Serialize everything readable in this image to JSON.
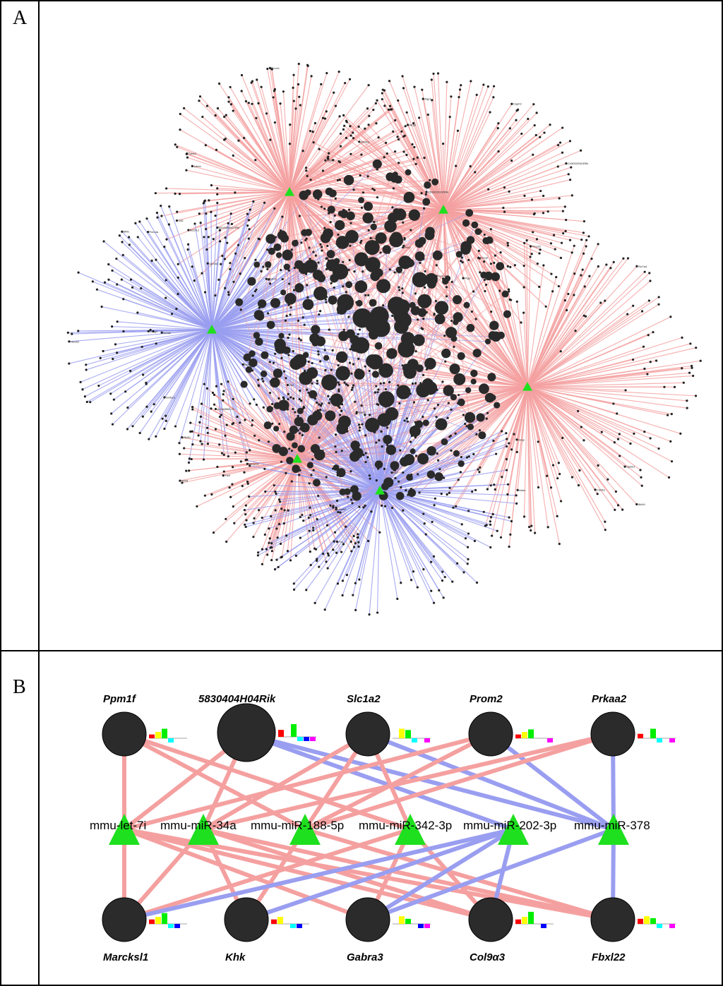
{
  "panels": {
    "a": {
      "letter": "A"
    },
    "b": {
      "letter": "B"
    }
  },
  "colors": {
    "up_edge": "#f5a0a0",
    "down_edge": "#9a9ef0",
    "node": "#2b2b2b",
    "mirna": "#1ee01e",
    "frame": "#000000"
  },
  "network_a": {
    "hubs": [
      {
        "id": "h1",
        "type": "up"
      },
      {
        "id": "h2",
        "type": "up"
      },
      {
        "id": "h3",
        "type": "down"
      },
      {
        "id": "h4",
        "type": "up"
      },
      {
        "id": "h5",
        "type": "up"
      },
      {
        "id": "h6",
        "type": "down"
      }
    ],
    "labels": [
      "1500015O02Rik",
      "4933404M17Rik",
      "Gli2",
      "Cdkn2",
      "Tubb2",
      "Sfxn4",
      "Bcl2l12",
      "Gdf15",
      "Runx1",
      "Adrb1",
      "Nlrp6",
      "Pigu",
      "Aqp1",
      "Zfp422",
      "Capn9",
      "Pdk1",
      "Nrp5",
      "Arl6",
      "C430002N24Rik",
      "Pex2",
      "Sorbs3",
      "Ptchd2",
      "Gpr161",
      "Nr4a2",
      "Sox7",
      "Wnt3",
      "Fmo4a",
      "Mill1",
      "Creg1",
      "Hecw2",
      "Spink1",
      "Adss",
      "Aldh1",
      "Grap",
      "Irs2",
      "Gm1006",
      "Slc7a4",
      "Kcnq3",
      "Cd24a",
      "Pmp22",
      "Ttc9",
      "Bcl6b",
      "Hmgcs2",
      "Lmnb2",
      "Zfp61",
      "AC168852.22",
      "Wnt4",
      "Mt2",
      "Fos",
      "Dusp1"
    ]
  },
  "genes": [
    {
      "id": "ppm1f",
      "name": "Ppm1f",
      "size": "s",
      "bars": [
        0.3,
        0.5,
        0.75,
        0.35,
        0,
        0
      ]
    },
    {
      "id": "rik",
      "name": "5830404H04Rik",
      "size": "l",
      "bars": [
        0.55,
        0,
        1.0,
        0.6,
        0.45,
        0.45
      ]
    },
    {
      "id": "slc1a2",
      "name": "Slc1a2",
      "size": "s",
      "bars": [
        0,
        0.75,
        0.65,
        0.4,
        0,
        0.35
      ]
    },
    {
      "id": "prom2",
      "name": "Prom2",
      "size": "s",
      "bars": [
        0.3,
        0.5,
        0.7,
        0,
        0,
        0.35
      ]
    },
    {
      "id": "prkaa2",
      "name": "Prkaa2",
      "size": "s",
      "bars": [
        0.35,
        0,
        0.75,
        0.4,
        0,
        0.35
      ]
    },
    {
      "id": "marcksl1",
      "name": "Marcksl1",
      "size": "s",
      "bars": [
        0.35,
        0.55,
        0.85,
        0.3,
        0.3,
        0
      ]
    },
    {
      "id": "khk",
      "name": "Khk",
      "size": "s",
      "bars": [
        0.35,
        0.55,
        0,
        0.4,
        0.4,
        0
      ]
    },
    {
      "id": "gabra3",
      "name": "Gabra3",
      "size": "s",
      "bars": [
        0,
        0.6,
        0.4,
        0,
        0.4,
        0.35
      ]
    },
    {
      "id": "col9a3",
      "name": "Col9α3",
      "size": "s",
      "bars": [
        0.35,
        0.55,
        0.95,
        0,
        0.35,
        0
      ]
    },
    {
      "id": "fbxl22",
      "name": "Fbxl22",
      "size": "s",
      "bars": [
        0.4,
        0.6,
        0.45,
        0.45,
        0,
        0.4
      ]
    }
  ],
  "mirnas": [
    {
      "id": "let7i",
      "name": "mmu-let-7i"
    },
    {
      "id": "mir34a",
      "name": "mmu-miR-34a"
    },
    {
      "id": "mir188",
      "name": "mmu-miR-188-5p"
    },
    {
      "id": "mir342",
      "name": "mmu-miR-342-3p"
    },
    {
      "id": "mir202",
      "name": "mmu-miR-202-3p"
    },
    {
      "id": "mir378",
      "name": "mmu-miR-378"
    }
  ],
  "bar_colors": [
    "#ff0000",
    "#ffff00",
    "#00ee00",
    "#00ffff",
    "#0000ff",
    "#ff00ff"
  ],
  "edges_b": [
    {
      "from": "ppm1f",
      "to": "let7i",
      "type": "up"
    },
    {
      "from": "ppm1f",
      "to": "mir188",
      "type": "up"
    },
    {
      "from": "ppm1f",
      "to": "mir342",
      "type": "up"
    },
    {
      "from": "rik",
      "to": "let7i",
      "type": "up"
    },
    {
      "from": "rik",
      "to": "mir34a",
      "type": "up"
    },
    {
      "from": "rik",
      "to": "mir202",
      "type": "down"
    },
    {
      "from": "rik",
      "to": "mir378",
      "type": "down"
    },
    {
      "from": "slc1a2",
      "to": "mir34a",
      "type": "up"
    },
    {
      "from": "slc1a2",
      "to": "mir342",
      "type": "up"
    },
    {
      "from": "slc1a2",
      "to": "mir378",
      "type": "down"
    },
    {
      "from": "slc1a2",
      "to": "mir188",
      "type": "up"
    },
    {
      "from": "prom2",
      "to": "let7i",
      "type": "up"
    },
    {
      "from": "prom2",
      "to": "mir188",
      "type": "up"
    },
    {
      "from": "prom2",
      "to": "mir378",
      "type": "down"
    },
    {
      "from": "prkaa2",
      "to": "mir34a",
      "type": "up"
    },
    {
      "from": "prkaa2",
      "to": "mir188",
      "type": "up"
    },
    {
      "from": "prkaa2",
      "to": "mir378",
      "type": "down"
    },
    {
      "from": "let7i",
      "to": "marcksl1",
      "type": "up"
    },
    {
      "from": "let7i",
      "to": "gabra3",
      "type": "up"
    },
    {
      "from": "let7i",
      "to": "col9a3",
      "type": "up"
    },
    {
      "from": "let7i",
      "to": "fbxl22",
      "type": "up"
    },
    {
      "from": "mir34a",
      "to": "marcksl1",
      "type": "up"
    },
    {
      "from": "mir34a",
      "to": "khk",
      "type": "up"
    },
    {
      "from": "mir34a",
      "to": "col9a3",
      "type": "up"
    },
    {
      "from": "mir34a",
      "to": "fbxl22",
      "type": "up"
    },
    {
      "from": "mir188",
      "to": "khk",
      "type": "up"
    },
    {
      "from": "mir188",
      "to": "fbxl22",
      "type": "up"
    },
    {
      "from": "mir342",
      "to": "marcksl1",
      "type": "up"
    },
    {
      "from": "mir342",
      "to": "gabra3",
      "type": "up"
    },
    {
      "from": "mir342",
      "to": "col9a3",
      "type": "up"
    },
    {
      "from": "mir202",
      "to": "marcksl1",
      "type": "down"
    },
    {
      "from": "mir202",
      "to": "khk",
      "type": "down"
    },
    {
      "from": "mir202",
      "to": "gabra3",
      "type": "down"
    },
    {
      "from": "mir202",
      "to": "col9a3",
      "type": "down"
    },
    {
      "from": "mir378",
      "to": "fbxl22",
      "type": "down"
    },
    {
      "from": "mir378",
      "to": "gabra3",
      "type": "down"
    }
  ]
}
